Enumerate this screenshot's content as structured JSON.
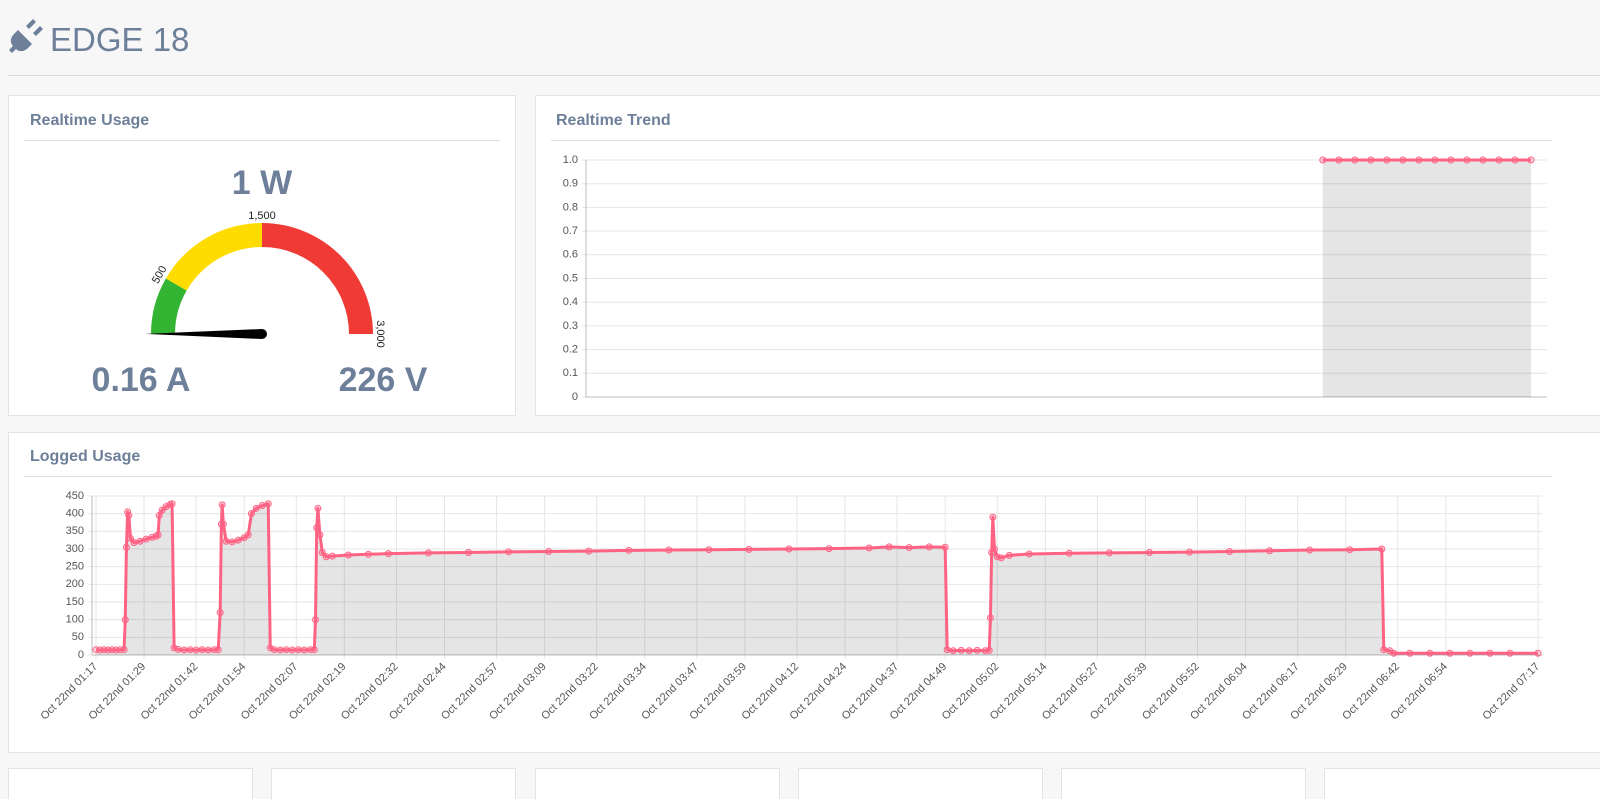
{
  "header": {
    "title": "EDGE 18"
  },
  "realtime_usage": {
    "title": "Realtime Usage",
    "power": "1 W",
    "current": "0.16 A",
    "voltage": "226 V",
    "gauge": {
      "type": "gauge",
      "value": 1,
      "range": [
        0,
        3000
      ],
      "ticks": [
        {
          "value": 500,
          "label": "500"
        },
        {
          "value": 1500,
          "label": "1,500"
        },
        {
          "value": 3000,
          "label": "3,000"
        }
      ],
      "bands": [
        {
          "from": 0,
          "to": 500,
          "color": "#33b533"
        },
        {
          "from": 500,
          "to": 1500,
          "color": "#fedc00"
        },
        {
          "from": 1500,
          "to": 3000,
          "color": "#f03a36"
        }
      ],
      "needle_color": "#000000"
    }
  },
  "realtime_trend": {
    "title": "Realtime Trend",
    "chart_data": {
      "type": "line",
      "x": [
        46,
        47,
        48,
        49,
        50,
        51,
        52,
        53,
        54,
        55,
        56,
        57,
        58,
        59
      ],
      "values": [
        1,
        1,
        1,
        1,
        1,
        1,
        1,
        1,
        1,
        1,
        1,
        1,
        1,
        1
      ],
      "color": "#ff6384",
      "area": true,
      "xlim": [
        0,
        60
      ],
      "ylim": [
        0,
        1
      ],
      "yticks": [
        0,
        0.1,
        0.2,
        0.3,
        0.4,
        0.5,
        0.6,
        0.7,
        0.8,
        0.9,
        {
          "value": 1,
          "label": "1.0"
        }
      ],
      "grid": true
    }
  },
  "logged_usage": {
    "title": "Logged Usage",
    "chart_data": {
      "type": "line",
      "x": [
        77,
        78,
        79,
        80,
        81,
        82,
        83,
        84,
        84.3,
        84.6,
        84.9,
        85.2,
        85.6,
        86.5,
        88,
        89.5,
        91,
        92,
        92.5,
        92.8,
        93.5,
        94.5,
        95.5,
        96,
        96.5,
        97.5,
        99,
        100.5,
        102,
        103.5,
        105,
        106.5,
        107.5,
        108,
        108.3,
        108.5,
        108.8,
        109.5,
        111,
        112.5,
        114,
        115,
        115.8,
        117,
        118.5,
        120,
        120.5,
        121.5,
        123,
        124.5,
        126,
        127.5,
        129,
        130.5,
        131.5,
        131.8,
        132.1,
        132.4,
        132.9,
        133.5,
        134.5,
        136,
        140,
        145,
        150,
        160,
        170,
        180,
        190,
        200,
        210,
        220,
        230,
        240,
        250,
        260,
        270,
        275,
        280,
        285,
        289,
        289.5,
        291,
        293,
        295,
        297,
        299,
        300,
        300.3,
        300.6,
        300.9,
        301.3,
        302,
        303,
        305,
        310,
        320,
        330,
        340,
        350,
        360,
        370,
        380,
        390,
        398,
        398.5,
        400,
        401,
        405,
        410,
        415,
        420,
        425,
        430,
        437
      ],
      "values": [
        15,
        14,
        15,
        14,
        15,
        14,
        15,
        15,
        100,
        305,
        405,
        395,
        330,
        318,
        322,
        328,
        333,
        336,
        340,
        395,
        410,
        420,
        426,
        428,
        20,
        16,
        14,
        15,
        14,
        15,
        14,
        15,
        15,
        120,
        370,
        425,
        370,
        322,
        320,
        325,
        332,
        340,
        400,
        415,
        423,
        428,
        20,
        15,
        14,
        15,
        14,
        15,
        14,
        15,
        15,
        100,
        360,
        415,
        340,
        290,
        278,
        280,
        283,
        285,
        287,
        289,
        290,
        292,
        293,
        294,
        296,
        297,
        298,
        299,
        300,
        301,
        303,
        306,
        304,
        306,
        305,
        15,
        12,
        13,
        12,
        13,
        12,
        13,
        105,
        290,
        390,
        300,
        278,
        275,
        282,
        286,
        288,
        289,
        290,
        291,
        293,
        295,
        297,
        298,
        300,
        15,
        12,
        5,
        5,
        5,
        5,
        5,
        5,
        5,
        5
      ],
      "color": "#ff6384",
      "area": true,
      "xlim": [
        76,
        438
      ],
      "ylim": [
        0,
        450
      ],
      "yticks": [
        0,
        50,
        100,
        150,
        200,
        250,
        300,
        350,
        400,
        450
      ],
      "xticks": [
        {
          "value": 77,
          "label": "Oct 22nd 01:17"
        },
        {
          "value": 89,
          "label": "Oct 22nd 01:29"
        },
        {
          "value": 102,
          "label": "Oct 22nd 01:42"
        },
        {
          "value": 114,
          "label": "Oct 22nd 01:54"
        },
        {
          "value": 127,
          "label": "Oct 22nd 02:07"
        },
        {
          "value": 139,
          "label": "Oct 22nd 02:19"
        },
        {
          "value": 152,
          "label": "Oct 22nd 02:32"
        },
        {
          "value": 164,
          "label": "Oct 22nd 02:44"
        },
        {
          "value": 177,
          "label": "Oct 22nd 02:57"
        },
        {
          "value": 189,
          "label": "Oct 22nd 03:09"
        },
        {
          "value": 202,
          "label": "Oct 22nd 03:22"
        },
        {
          "value": 214,
          "label": "Oct 22nd 03:34"
        },
        {
          "value": 227,
          "label": "Oct 22nd 03:47"
        },
        {
          "value": 239,
          "label": "Oct 22nd 03:59"
        },
        {
          "value": 252,
          "label": "Oct 22nd 04:12"
        },
        {
          "value": 264,
          "label": "Oct 22nd 04:24"
        },
        {
          "value": 277,
          "label": "Oct 22nd 04:37"
        },
        {
          "value": 289,
          "label": "Oct 22nd 04:49"
        },
        {
          "value": 302,
          "label": "Oct 22nd 05:02"
        },
        {
          "value": 314,
          "label": "Oct 22nd 05:14"
        },
        {
          "value": 327,
          "label": "Oct 22nd 05:27"
        },
        {
          "value": 339,
          "label": "Oct 22nd 05:39"
        },
        {
          "value": 352,
          "label": "Oct 22nd 05:52"
        },
        {
          "value": 364,
          "label": "Oct 22nd 06:04"
        },
        {
          "value": 377,
          "label": "Oct 22nd 06:17"
        },
        {
          "value": 389,
          "label": "Oct 22nd 06:29"
        },
        {
          "value": 402,
          "label": "Oct 22nd 06:42"
        },
        {
          "value": 414,
          "label": "Oct 22nd 06:54"
        },
        {
          "value": 437,
          "label": "Oct 22nd 07:17"
        }
      ],
      "grid": true
    }
  }
}
